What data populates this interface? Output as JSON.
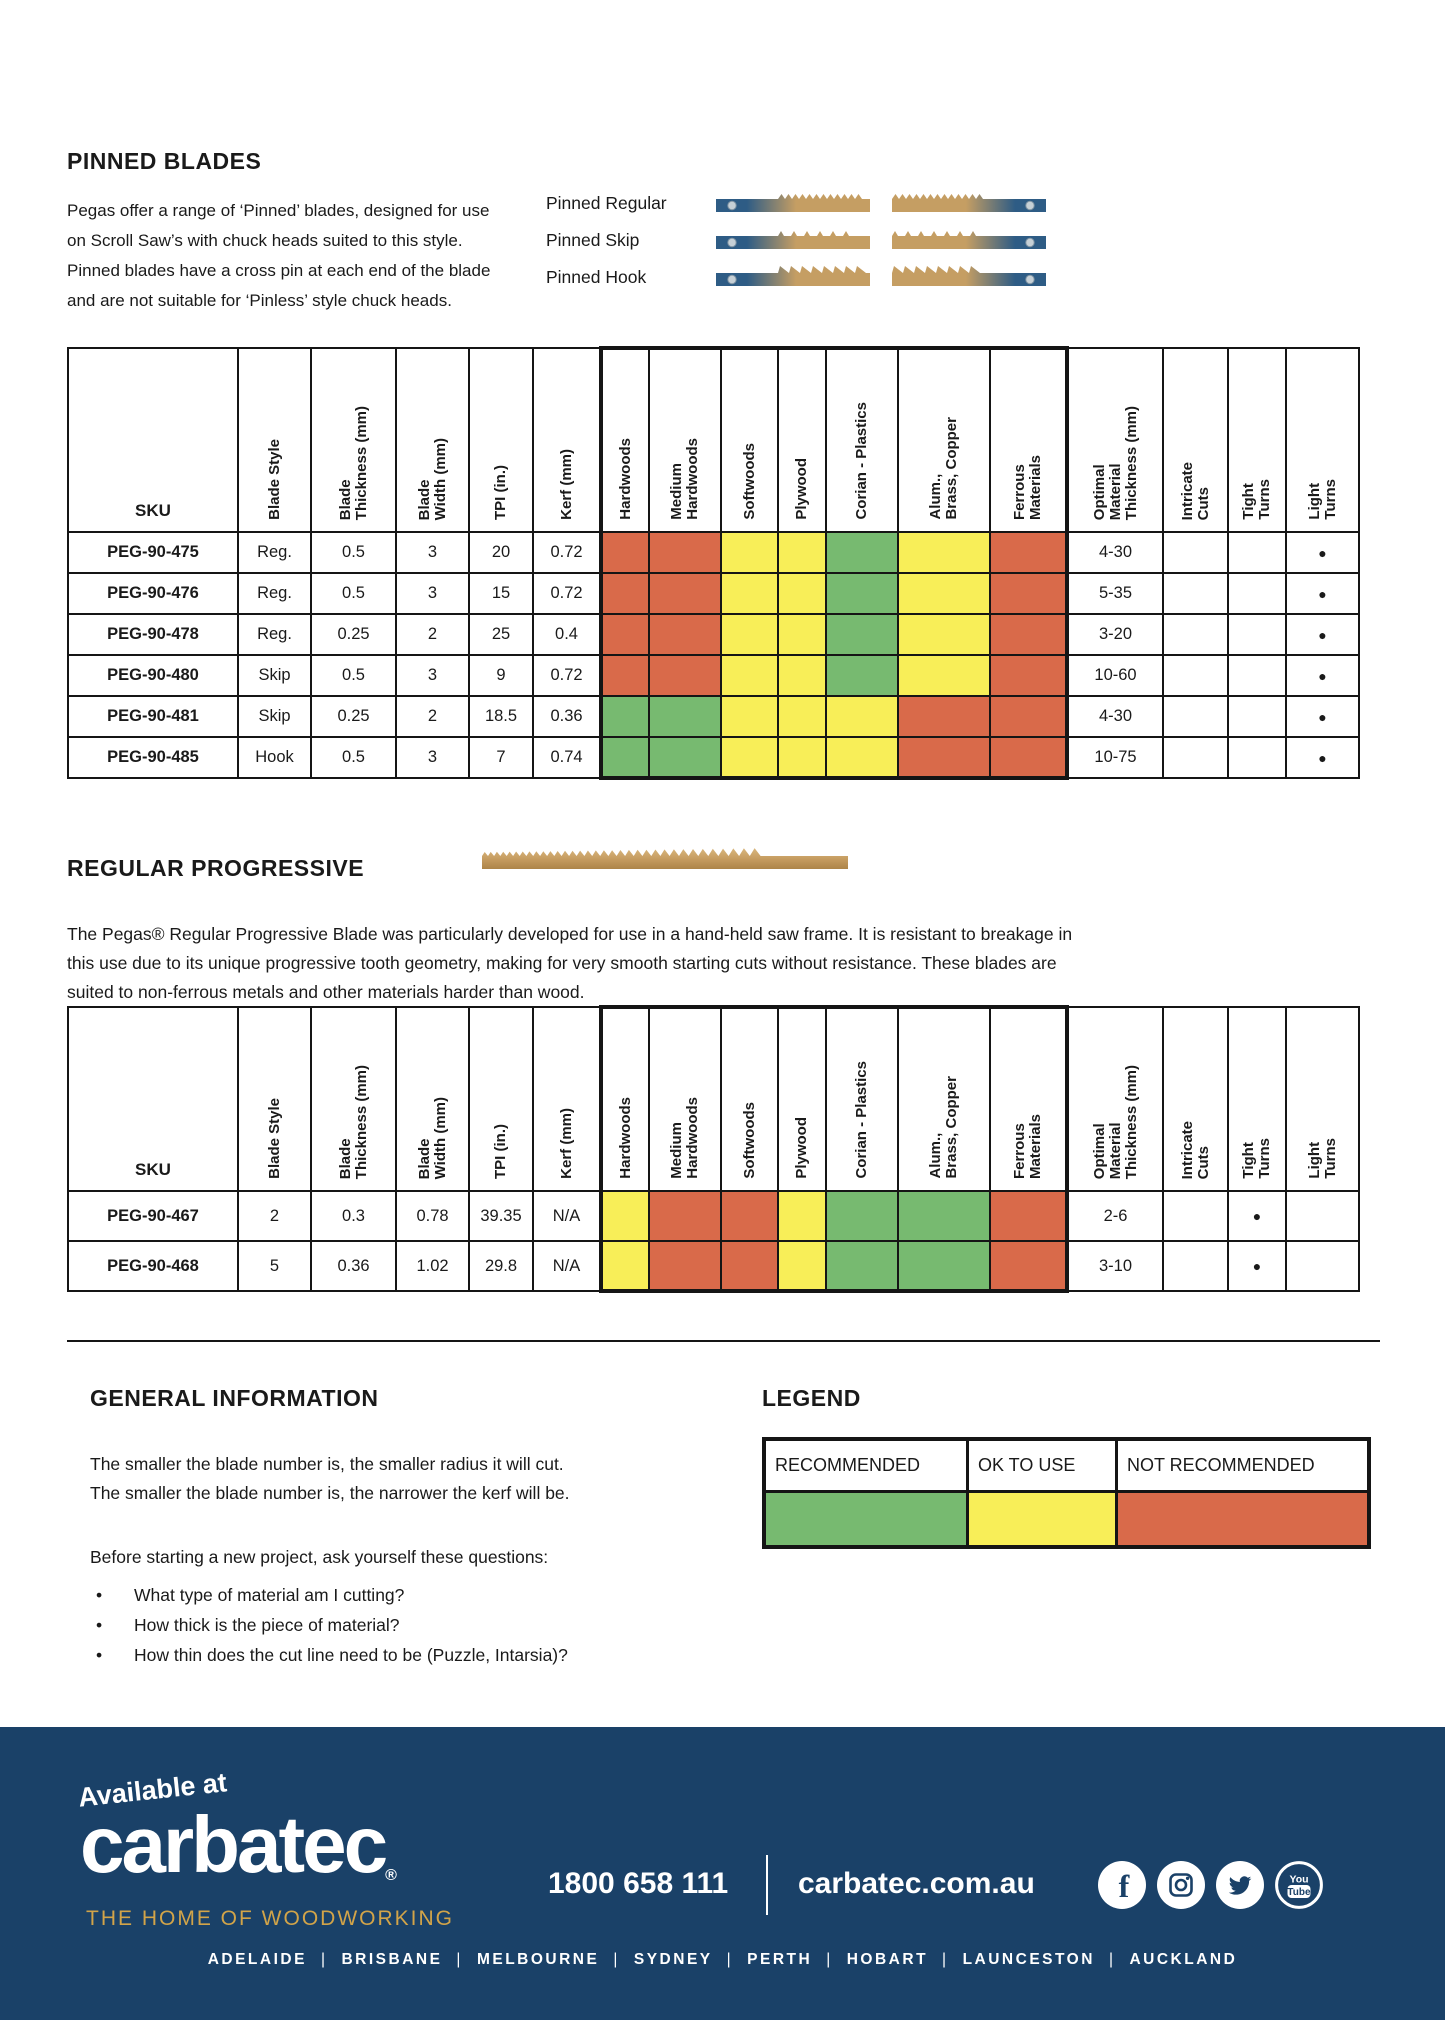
{
  "colors": {
    "recommended": "#77ba70",
    "ok": "#f8ee58",
    "not_recommended": "#d96a4a",
    "footer_navy": "#1a4168",
    "gold": "#d2a449",
    "blade_navy": "#2e5c85",
    "blade_tan": "#c59e63"
  },
  "rating_legend": {
    "R": "RECOMMENDED",
    "O": "OK TO USE",
    "N": "NOT RECOMMENDED"
  },
  "pinned": {
    "title": "PINNED BLADES",
    "description": "Pegas offer a range of ‘Pinned’ blades, designed for use\non Scroll Saw’s with chuck heads suited to this style.\nPinned blades have a cross pin at each end of the blade\nand are not suitable for ‘Pinless’ style chuck heads.",
    "blades": [
      {
        "label": "Pinned Regular",
        "type": "regular"
      },
      {
        "label": "Pinned Skip",
        "type": "skip"
      },
      {
        "label": "Pinned Hook",
        "type": "hook"
      }
    ]
  },
  "table_columns": [
    "SKU",
    "Blade Style",
    "Blade\nThickness (mm)",
    "Blade\nWidth (mm)",
    "TPI (in.)",
    "Kerf (mm)",
    "Hardwoods",
    "Medium\nHardwoods",
    "Softwoods",
    "Plywood",
    "Corian  - Plastics",
    "Alum.,\nBrass, Copper",
    "Ferrous\nMaterials",
    "Optimal\nMaterial\nThickness (mm)",
    "Intricate\nCuts",
    "Tight\nTurns",
    "Light\nTurns"
  ],
  "pinned_table": {
    "rows": [
      {
        "cells": [
          "PEG-90-475",
          "Reg.",
          "0.5",
          "3",
          "20",
          "0.72"
        ],
        "ratings": [
          "N",
          "N",
          "O",
          "O",
          "R",
          "O",
          "N"
        ],
        "optimal": "4-30",
        "intricate": "",
        "tight": "",
        "light": "●"
      },
      {
        "cells": [
          "PEG-90-476",
          "Reg.",
          "0.5",
          "3",
          "15",
          "0.72"
        ],
        "ratings": [
          "N",
          "N",
          "O",
          "O",
          "R",
          "O",
          "N"
        ],
        "optimal": "5-35",
        "intricate": "",
        "tight": "",
        "light": "●"
      },
      {
        "cells": [
          "PEG-90-478",
          "Reg.",
          "0.25",
          "2",
          "25",
          "0.4"
        ],
        "ratings": [
          "N",
          "N",
          "O",
          "O",
          "R",
          "O",
          "N"
        ],
        "optimal": "3-20",
        "intricate": "",
        "tight": "",
        "light": "●"
      },
      {
        "cells": [
          "PEG-90-480",
          "Skip",
          "0.5",
          "3",
          "9",
          "0.72"
        ],
        "ratings": [
          "N",
          "N",
          "O",
          "O",
          "R",
          "O",
          "N"
        ],
        "optimal": "10-60",
        "intricate": "",
        "tight": "",
        "light": "●"
      },
      {
        "cells": [
          "PEG-90-481",
          "Skip",
          "0.25",
          "2",
          "18.5",
          "0.36"
        ],
        "ratings": [
          "R",
          "R",
          "O",
          "O",
          "O",
          "N",
          "N"
        ],
        "optimal": "4-30",
        "intricate": "",
        "tight": "",
        "light": "●"
      },
      {
        "cells": [
          "PEG-90-485",
          "Hook",
          "0.5",
          "3",
          "7",
          "0.74"
        ],
        "ratings": [
          "R",
          "R",
          "O",
          "O",
          "O",
          "N",
          "N"
        ],
        "optimal": "10-75",
        "intricate": "",
        "tight": "",
        "light": "●"
      }
    ]
  },
  "progressive": {
    "title": "REGULAR PROGRESSIVE",
    "description": "The Pegas® Regular Progressive Blade was particularly developed for use in a hand-held saw frame. It is resistant to breakage in\nthis use due to its unique progressive tooth geometry, making for very smooth starting cuts without resistance. These blades are\nsuited to non-ferrous metals and other materials harder than wood."
  },
  "progressive_table": {
    "rows": [
      {
        "cells": [
          "PEG-90-467",
          "2",
          "0.3",
          "0.78",
          "39.35",
          "N/A"
        ],
        "ratings": [
          "O",
          "N",
          "N",
          "O",
          "R",
          "R",
          "N"
        ],
        "optimal": "2-6",
        "intricate": "",
        "tight": "●",
        "light": ""
      },
      {
        "cells": [
          "PEG-90-468",
          "5",
          "0.36",
          "1.02",
          "29.8",
          "N/A"
        ],
        "ratings": [
          "O",
          "N",
          "N",
          "O",
          "R",
          "R",
          "N"
        ],
        "optimal": "3-10",
        "intricate": "",
        "tight": "●",
        "light": ""
      }
    ]
  },
  "general_info": {
    "title": "GENERAL INFORMATION",
    "lines": [
      "The smaller the blade number is, the smaller radius it will cut.",
      "The smaller the blade number is, the narrower the kerf will be."
    ],
    "questions_intro": "Before starting a new project, ask yourself these questions:",
    "questions": [
      "What type of material am I cutting?",
      "How thick is the piece of material?",
      "How thin does the cut line need to be (Puzzle, Intarsia)?"
    ]
  },
  "legend": {
    "title": "LEGEND",
    "items": [
      {
        "label": "RECOMMENDED",
        "key": "recommended"
      },
      {
        "label": "OK TO USE",
        "key": "ok"
      },
      {
        "label": "NOT RECOMMENDED",
        "key": "not_recommended"
      }
    ]
  },
  "footer": {
    "available_at": "Available at",
    "brand": "carbatec",
    "registered": "®",
    "tagline": "THE HOME OF WOODWORKING",
    "phone": "1800 658 111",
    "website": "carbatec.com.au",
    "social": [
      "facebook",
      "instagram",
      "twitter",
      "youtube"
    ],
    "cities": [
      "ADELAIDE",
      "BRISBANE",
      "MELBOURNE",
      "SYDNEY",
      "PERTH",
      "HOBART",
      "LAUNCESTON",
      "AUCKLAND"
    ]
  }
}
